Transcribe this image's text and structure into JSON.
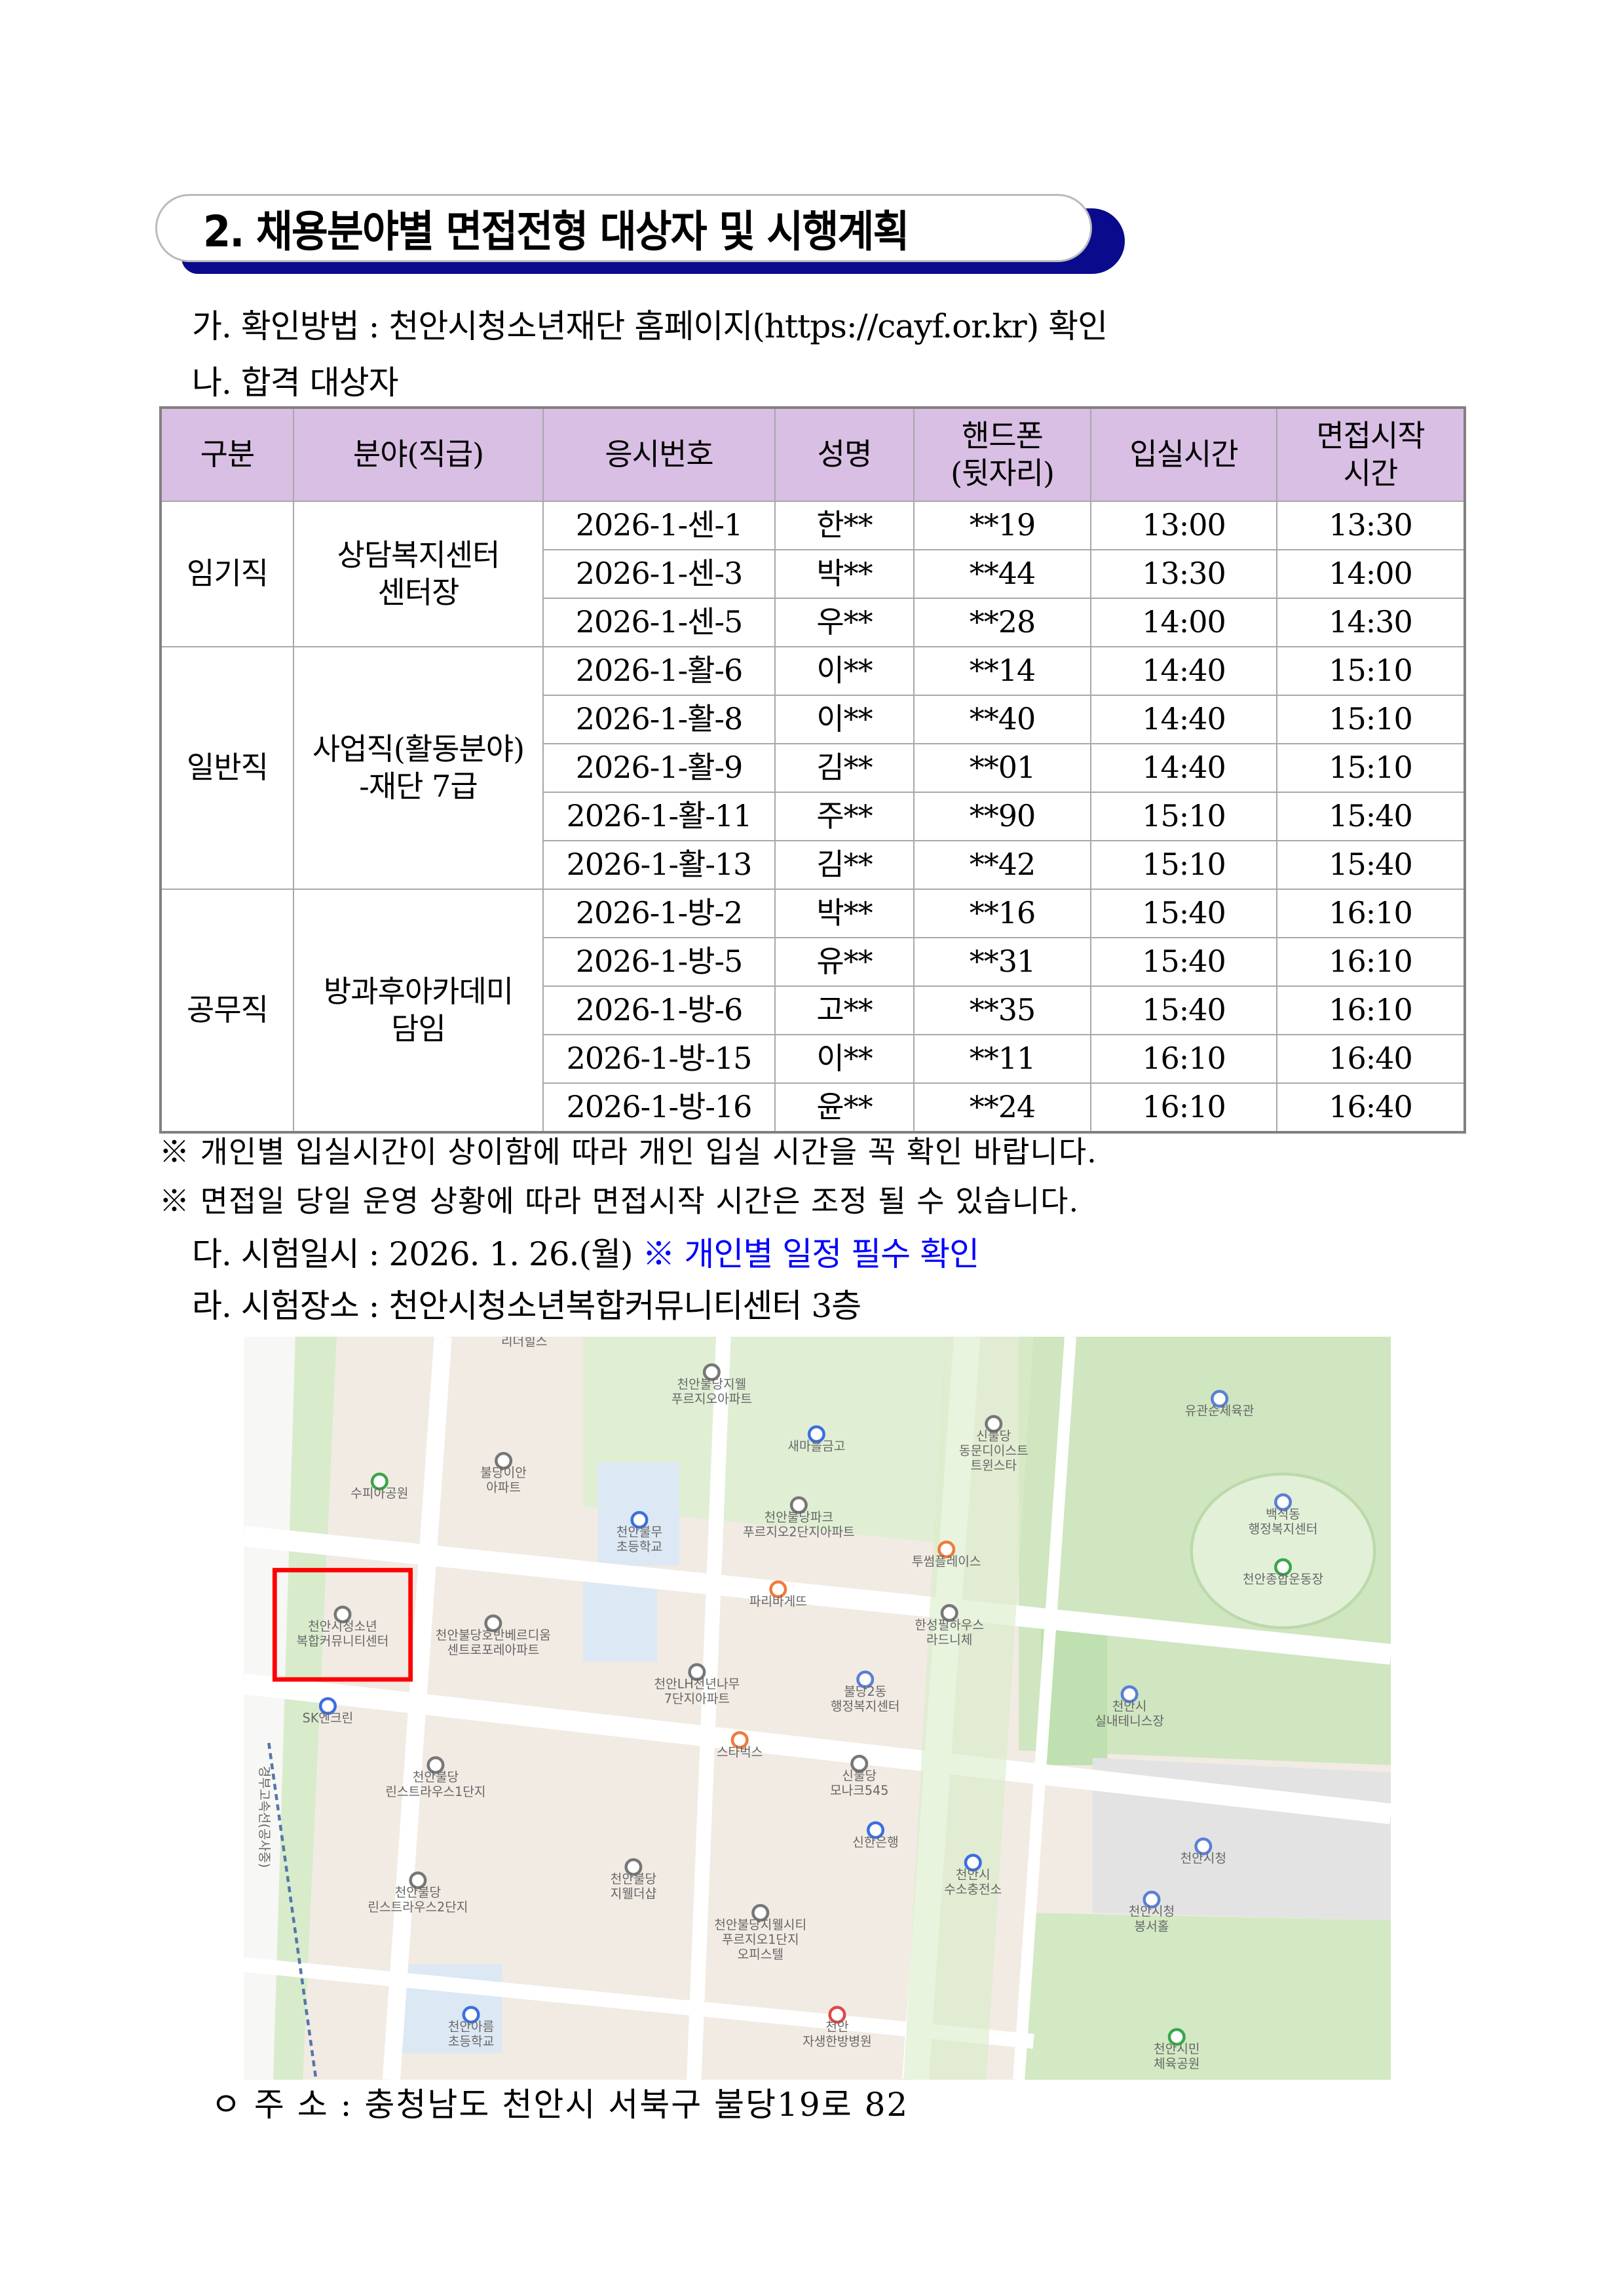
{
  "title": "2. 채용분야별 면접전형 대상자 및 시행계획",
  "section_ga": "가. 확인방법 : 천안시청소년재단 홈페이지(https://cayf.or.kr) 확인",
  "section_na": "나. 합격 대상자",
  "table": {
    "headers": [
      "구분",
      "분야(직급)",
      "응시번호",
      "성명",
      "핸드폰\n(뒷자리)",
      "입실시간",
      "면접시작\n시간"
    ],
    "header_lines": {
      "phone": [
        "핸드폰",
        "(뒷자리)"
      ],
      "start": [
        "면접시작",
        "시간"
      ]
    },
    "groups": [
      {
        "category": "임기직",
        "field": [
          "상담복지센터",
          "센터장"
        ],
        "rows": [
          [
            "2026-1-센-1",
            "한**",
            "**19",
            "13:00",
            "13:30"
          ],
          [
            "2026-1-센-3",
            "박**",
            "**44",
            "13:30",
            "14:00"
          ],
          [
            "2026-1-센-5",
            "우**",
            "**28",
            "14:00",
            "14:30"
          ]
        ]
      },
      {
        "category": "일반직",
        "field": [
          "사업직(활동분야)",
          "-재단 7급"
        ],
        "rows": [
          [
            "2026-1-활-6",
            "이**",
            "**14",
            "14:40",
            "15:10"
          ],
          [
            "2026-1-활-8",
            "이**",
            "**40",
            "14:40",
            "15:10"
          ],
          [
            "2026-1-활-9",
            "김**",
            "**01",
            "14:40",
            "15:10"
          ],
          [
            "2026-1-활-11",
            "주**",
            "**90",
            "15:10",
            "15:40"
          ],
          [
            "2026-1-활-13",
            "김**",
            "**42",
            "15:10",
            "15:40"
          ]
        ]
      },
      {
        "category": "공무직",
        "field": [
          "방과후아카데미",
          "담임"
        ],
        "rows": [
          [
            "2026-1-방-2",
            "박**",
            "**16",
            "15:40",
            "16:10"
          ],
          [
            "2026-1-방-5",
            "유**",
            "**31",
            "15:40",
            "16:10"
          ],
          [
            "2026-1-방-6",
            "고**",
            "**35",
            "15:40",
            "16:10"
          ],
          [
            "2026-1-방-15",
            "이**",
            "**11",
            "16:10",
            "16:40"
          ],
          [
            "2026-1-방-16",
            "윤**",
            "**24",
            "16:10",
            "16:40"
          ]
        ]
      }
    ],
    "header_bg": "#d9bfe3"
  },
  "notes": [
    "※ 개인별 입실시간이 상이함에 따라 개인 입실 시간을 꼭 확인 바랍니다.",
    "※ 면접일 당일 운영 상황에 따라 면접시작 시간은 조정 될 수 있습니다."
  ],
  "section_da": {
    "text": "다. 시험일시 : 2026. 1. 26.(월)",
    "highlight": "※ 개인별 일정 필수 확인",
    "highlight_color": "#0000ff"
  },
  "section_ra": "라. 시험장소 : 천안시청소년복합커뮤니티센터 3층",
  "map": {
    "labels": [
      {
        "lines": [
          "리더힐스"
        ],
        "icon": "none"
      },
      {
        "lines": [
          "천안불당지웰",
          "푸르지오아파트"
        ],
        "icon": "apartment-icon"
      },
      {
        "lines": [
          "새마을금고"
        ],
        "icon": "bank-icon"
      },
      {
        "lines": [
          "신불당",
          "동문디이스트",
          "트윈스타"
        ],
        "icon": "apartment-icon"
      },
      {
        "lines": [
          "유관순체육관"
        ],
        "icon": "building-icon"
      },
      {
        "lines": [
          "불당이안",
          "아파트"
        ],
        "icon": "apartment-icon"
      },
      {
        "lines": [
          "수피아공원"
        ],
        "icon": "park-icon"
      },
      {
        "lines": [
          "천안불무",
          "초등학교"
        ],
        "icon": "school-icon"
      },
      {
        "lines": [
          "천안불당파크",
          "푸르지오2단지아파트"
        ],
        "icon": "apartment-icon"
      },
      {
        "lines": [
          "투썸플레이스"
        ],
        "icon": "cafe-icon"
      },
      {
        "lines": [
          "백석동",
          "행정복지센터"
        ],
        "icon": "building-icon"
      },
      {
        "lines": [
          "천안종합운동장"
        ],
        "icon": "park-icon"
      },
      {
        "lines": [
          "천안시청소년",
          "복합커뮤니티센터"
        ],
        "icon": "community-center-icon"
      },
      {
        "lines": [
          "천안불당호반베르디움",
          "센트로포레아파트"
        ],
        "icon": "apartment-icon"
      },
      {
        "lines": [
          "파리바게뜨"
        ],
        "icon": "bakery-icon"
      },
      {
        "lines": [
          "한성필하우스",
          "라드니체"
        ],
        "icon": "apartment-icon"
      },
      {
        "lines": [
          "천안LH천년나무",
          "7단지아파트"
        ],
        "icon": "apartment-icon"
      },
      {
        "lines": [
          "불당2동",
          "행정복지센터"
        ],
        "icon": "building-icon"
      },
      {
        "lines": [
          "천안시",
          "실내테니스장"
        ],
        "icon": "building-icon"
      },
      {
        "lines": [
          "SK엔크린"
        ],
        "icon": "gas-station-icon"
      },
      {
        "lines": [
          "스타벅스"
        ],
        "icon": "cafe-icon"
      },
      {
        "lines": [
          "천안불당",
          "린스트라우스1단지"
        ],
        "icon": "apartment-icon"
      },
      {
        "lines": [
          "신불당",
          "모나크545"
        ],
        "icon": "apartment-icon"
      },
      {
        "lines": [
          "신한은행"
        ],
        "icon": "bank-icon"
      },
      {
        "lines": [
          "천안시",
          "수소충전소"
        ],
        "icon": "gas-station-icon"
      },
      {
        "lines": [
          "천안시청"
        ],
        "icon": "building-icon"
      },
      {
        "lines": [
          "천안시청",
          "봉서홀"
        ],
        "icon": "building-icon"
      },
      {
        "lines": [
          "천안불당",
          "린스트라우스2단지"
        ],
        "icon": "apartment-icon"
      },
      {
        "lines": [
          "천안불당",
          "지웰더샵"
        ],
        "icon": "apartment-icon"
      },
      {
        "lines": [
          "천안불당지웰시티",
          "푸르지오1단지",
          "오피스텔"
        ],
        "icon": "apartment-icon"
      },
      {
        "lines": [
          "천안아름",
          "초등학교"
        ],
        "icon": "school-icon"
      },
      {
        "lines": [
          "천안",
          "자생한방병원"
        ],
        "icon": "hospital-icon"
      },
      {
        "lines": [
          "천안시민",
          "체육공원"
        ],
        "icon": "park-icon"
      },
      {
        "lines": [
          "경부고속선(공사중)"
        ],
        "icon": "none"
      }
    ],
    "highlight_color": "#ff0000"
  },
  "address": "ㅇ 주 소 : 충청남도 천안시 서북구 불당19로 82"
}
